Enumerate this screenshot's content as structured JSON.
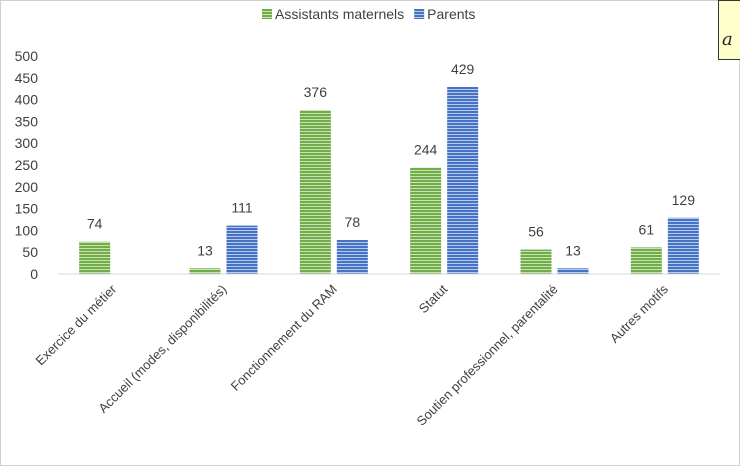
{
  "chart_data": {
    "type": "bar",
    "categories": [
      "Exercice du métier",
      "Accueil (modes, disponibilités)",
      "Fonctionnement du RAM",
      "Statut",
      "Soutien professionnel, parentalité",
      "Autres motifs"
    ],
    "series": [
      {
        "name": "Assistants maternels",
        "color": "#70ad47",
        "values": [
          74,
          13,
          376,
          244,
          56,
          61
        ]
      },
      {
        "name": "Parents",
        "color": "#4472c4",
        "values": [
          null,
          111,
          78,
          429,
          13,
          129
        ]
      }
    ],
    "ylim": [
      0,
      500
    ],
    "yticks": [
      0,
      50,
      100,
      150,
      200,
      250,
      300,
      350,
      400,
      450,
      500
    ],
    "grid": false,
    "legend": "top-center",
    "data_labels": true,
    "xlabel": "",
    "ylabel": "",
    "title": ""
  },
  "corner_note": {
    "text": "a"
  }
}
